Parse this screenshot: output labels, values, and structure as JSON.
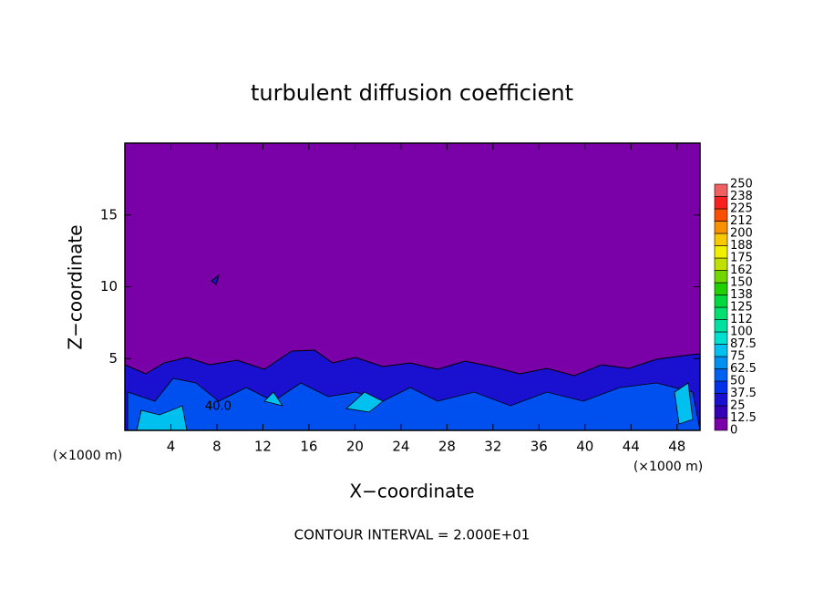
{
  "chart_data": {
    "type": "contour",
    "title": "turbulent diffusion coefficient",
    "xlabel": "X−coordinate",
    "ylabel": "Z−coordinate",
    "x_unit_label": "(×1000 m)",
    "footer": "CONTOUR INTERVAL = 2.000E+01",
    "contour_label": "40.0",
    "xlim": [
      0,
      50
    ],
    "xticks": [
      4,
      8,
      12,
      16,
      20,
      24,
      28,
      32,
      36,
      40,
      44,
      48
    ],
    "ylim": [
      0,
      20
    ],
    "yticks": [
      5,
      10,
      15
    ],
    "grid": false,
    "colorbar": {
      "levels": [
        0,
        12.5,
        25,
        37.5,
        50,
        62.5,
        75,
        87.5,
        100,
        {
          "value": 112.5,
          "label": "112"
        },
        125,
        {
          "value": 137.5,
          "label": "138"
        },
        150,
        {
          "value": 162.5,
          "label": "162"
        },
        175,
        {
          "value": 187.5,
          "label": "188"
        },
        200,
        {
          "value": 212.5,
          "label": "212"
        },
        225,
        {
          "value": 237.5,
          "label": "238"
        },
        250
      ],
      "colors": [
        "#7a00a8",
        "#3400b8",
        "#1a10d0",
        "#0030e8",
        "#0060f0",
        "#0090f0",
        "#00c0f0",
        "#00e0d0",
        "#00e0a0",
        "#00e070",
        "#00d840",
        "#20d000",
        "#70d800",
        "#c0e000",
        "#f0f000",
        "#f8c800",
        "#f89000",
        "#f85000",
        "#f82020",
        "#f06060"
      ]
    }
  }
}
